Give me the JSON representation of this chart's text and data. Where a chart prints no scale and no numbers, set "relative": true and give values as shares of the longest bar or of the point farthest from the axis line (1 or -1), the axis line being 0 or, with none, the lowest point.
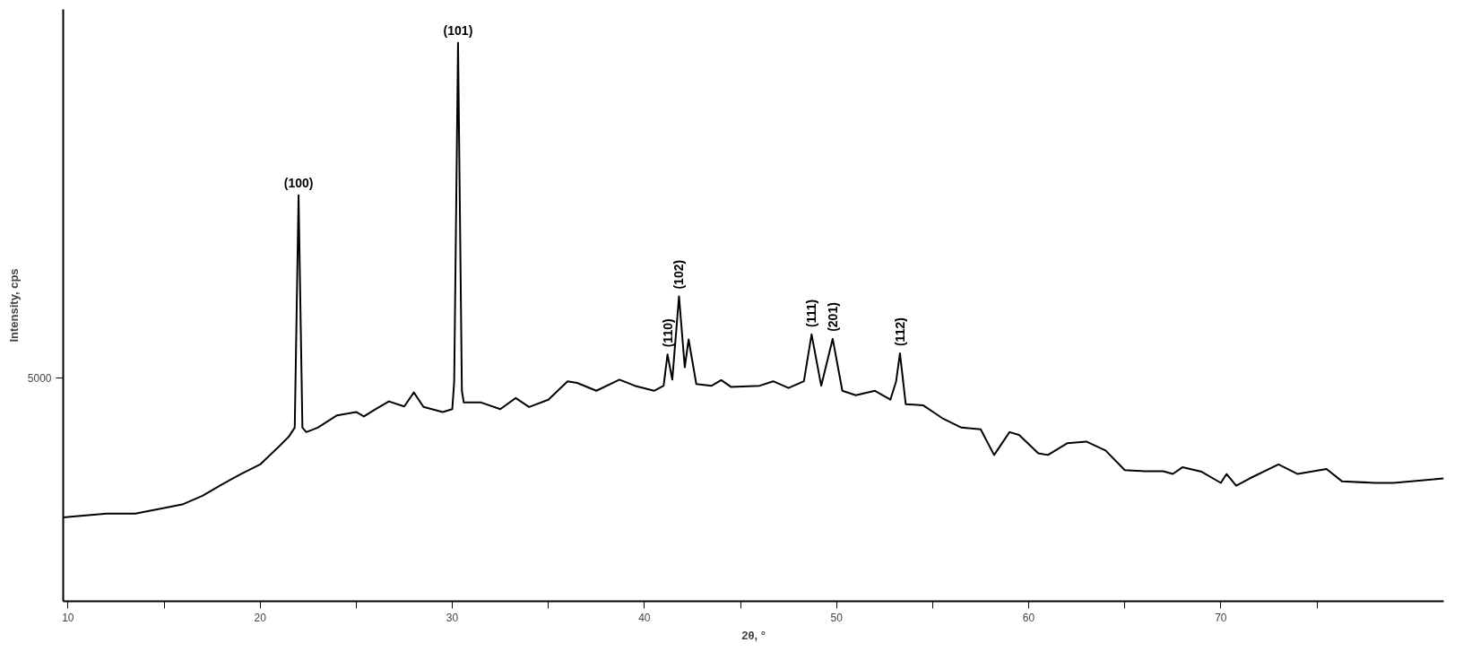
{
  "chart_data": {
    "type": "line",
    "relative": true,
    "xlabel": "2θ, °",
    "ylabel": "Intensity, cps",
    "xlim": [
      9.75,
      81.6
    ],
    "xticks": [
      10,
      {
        "value": 15,
        "label": null
      },
      20,
      {
        "value": 25,
        "label": null
      },
      30,
      {
        "value": 35,
        "label": null
      },
      40,
      {
        "value": 45,
        "label": null
      },
      50,
      {
        "value": 55,
        "label": null
      },
      60,
      {
        "value": 65,
        "label": null
      },
      70,
      {
        "value": 75,
        "label": null
      }
    ],
    "grid": false,
    "marker": "none",
    "line_style": "solid",
    "series": [
      {
        "color": "#000000",
        "x": [
          9.75,
          10,
          12,
          13.5,
          15,
          16,
          17,
          18,
          19,
          20,
          21,
          21.5,
          21.8,
          22.0,
          22.2,
          22.4,
          23,
          24,
          25,
          25.4,
          26,
          26.7,
          27.5,
          28,
          28.5,
          29.5,
          30.0,
          30.1,
          30.3,
          30.5,
          30.6,
          31.5,
          32.5,
          33.3,
          34,
          35,
          36,
          36.5,
          37.5,
          38.7,
          39.5,
          40.5,
          41.0,
          41.2,
          41.45,
          41.8,
          42.1,
          42.3,
          42.7,
          43.5,
          44,
          44.5,
          46,
          46.7,
          47.5,
          48.3,
          48.7,
          49.2,
          49.8,
          50.3,
          51,
          52,
          52.8,
          53.1,
          53.3,
          53.6,
          54.5,
          55.5,
          56.5,
          57.5,
          58.2,
          59,
          59.5,
          60.5,
          61,
          62,
          63,
          64,
          65,
          66,
          67,
          67.5,
          68,
          69,
          70,
          70.3,
          70.8,
          71.5,
          73,
          74,
          75.5,
          76.3,
          78,
          79,
          81.6
        ],
        "values": [
          0.15,
          0.151,
          0.157,
          0.157,
          0.167,
          0.174,
          0.189,
          0.209,
          0.228,
          0.245,
          0.278,
          0.295,
          0.311,
          0.727,
          0.311,
          0.303,
          0.311,
          0.333,
          0.339,
          0.331,
          0.344,
          0.358,
          0.349,
          0.374,
          0.348,
          0.339,
          0.344,
          0.394,
          1.0,
          0.377,
          0.356,
          0.356,
          0.344,
          0.364,
          0.348,
          0.361,
          0.394,
          0.391,
          0.377,
          0.397,
          0.386,
          0.377,
          0.386,
          0.442,
          0.397,
          0.546,
          0.419,
          0.469,
          0.389,
          0.386,
          0.396,
          0.384,
          0.386,
          0.394,
          0.382,
          0.394,
          0.478,
          0.386,
          0.47,
          0.377,
          0.369,
          0.377,
          0.361,
          0.394,
          0.444,
          0.353,
          0.351,
          0.328,
          0.311,
          0.308,
          0.262,
          0.303,
          0.298,
          0.265,
          0.262,
          0.283,
          0.286,
          0.27,
          0.235,
          0.233,
          0.233,
          0.228,
          0.24,
          0.232,
          0.212,
          0.228,
          0.207,
          0.22,
          0.245,
          0.228,
          0.237,
          0.215,
          0.212,
          0.212,
          0.22
        ]
      }
    ],
    "annotations": [
      "5000",
      {
        "text": "(100)",
        "x": 22.0,
        "y": 0.727
      },
      {
        "text": "(101)",
        "x": 30.3,
        "y": 1.0
      },
      {
        "text": "(110)",
        "x": 41.2,
        "y": 0.442
      },
      {
        "text": "(102)",
        "x": 41.8,
        "y": 0.546
      },
      {
        "text": "(111)",
        "x": 48.7,
        "y": 0.478
      },
      {
        "text": "(201)",
        "x": 49.8,
        "y": 0.47
      },
      {
        "text": "(112)",
        "x": 53.3,
        "y": 0.444
      }
    ]
  }
}
